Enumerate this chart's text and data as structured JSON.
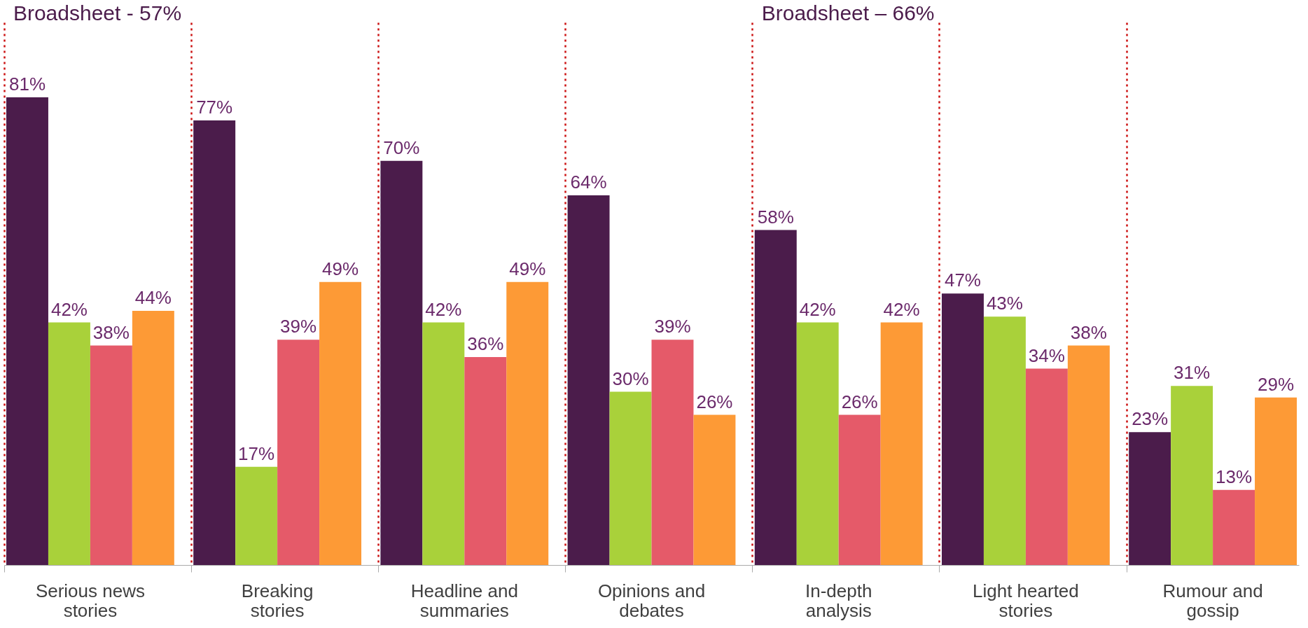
{
  "chart_data": {
    "type": "bar",
    "categories": [
      "Serious news stories",
      "Breaking stories",
      "Headline and summaries",
      "Opinions and debates",
      "In-depth analysis",
      "Light hearted stories",
      "Rumour and gossip"
    ],
    "series": [
      {
        "color": "#4b1c4b",
        "values": [
          81,
          77,
          70,
          64,
          58,
          47,
          23
        ],
        "value_labels": [
          "81%",
          "77%",
          "70%",
          "64%",
          "58%",
          "47%",
          "23%"
        ]
      },
      {
        "color": "#a9d13a",
        "values": [
          42,
          17,
          42,
          30,
          42,
          43,
          31
        ],
        "value_labels": [
          "42%",
          "17%",
          "42%",
          "30%",
          "42%",
          "43%",
          "31%"
        ]
      },
      {
        "color": "#e55a69",
        "values": [
          38,
          39,
          36,
          39,
          26,
          34,
          13
        ],
        "value_labels": [
          "38%",
          "39%",
          "36%",
          "39%",
          "26%",
          "34%",
          "13%"
        ]
      },
      {
        "color": "#fd9a36",
        "values": [
          44,
          49,
          49,
          26,
          42,
          38,
          29
        ],
        "value_labels": [
          "44%",
          "49%",
          "49%",
          "26%",
          "42%",
          "38%",
          "29%"
        ]
      }
    ],
    "grid": "x",
    "tick_labels": "x",
    "annotations": [
      "Broadsheet - 57%",
      "Broadsheet – 66%"
    ]
  }
}
